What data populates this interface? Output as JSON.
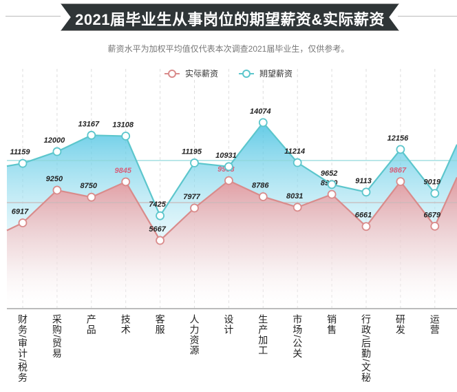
{
  "title": "2021届毕业生从事岗位的期望薪资&实际薪资",
  "subtitle": "薪资水平为加权平均值仅代表本次调查2021届毕业生，仅供参考。",
  "chart_data": {
    "type": "line",
    "title": "2021届毕业生从事岗位的期望薪资&实际薪资",
    "categories": [
      "财务/审计/税务",
      "采购/贸易",
      "产品",
      "技术",
      "客服",
      "人力资源",
      "设计",
      "生产加工",
      "市场/公关",
      "销售",
      "行政/后勤/文秘",
      "研发",
      "运营"
    ],
    "series": [
      {
        "name": "实际薪资",
        "color": "#d98b8b",
        "values": [
          6917,
          9250,
          8750,
          9845,
          5667,
          7977,
          9933,
          8786,
          8031,
          8950,
          6661,
          9867,
          6679
        ],
        "highlighted": [
          3,
          6,
          11
        ],
        "highlight_color": "#d6607a"
      },
      {
        "name": "期望薪资",
        "color": "#5cc6cc",
        "values": [
          11159,
          12000,
          13167,
          13108,
          7425,
          11195,
          10931,
          14074,
          11214,
          9652,
          9113,
          12156,
          9019
        ]
      }
    ],
    "reference_lines": [
      11365,
      8360
    ],
    "ylim": [
      800,
      17900
    ],
    "grid": "vertical dashed",
    "legend": "top-center",
    "area_fill": true
  }
}
